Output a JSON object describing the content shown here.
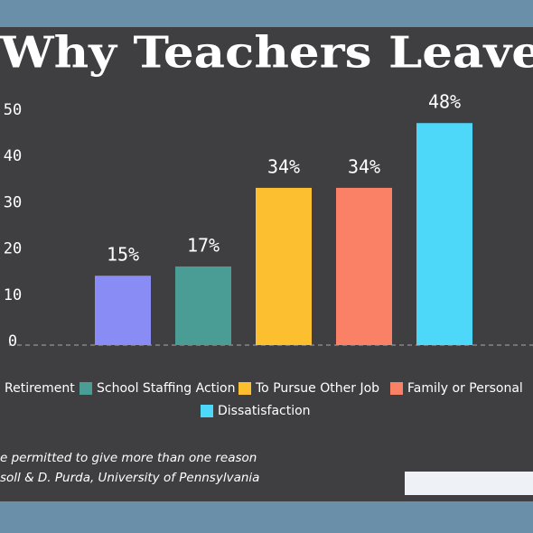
{
  "chart_data": {
    "type": "bar",
    "title": "Why Teachers Leave",
    "categories": [
      "Retirement",
      "School Staffing Action",
      "To Pursue Other Job",
      "Family or Personal",
      "Dissatisfaction"
    ],
    "values": [
      15,
      17,
      34,
      34,
      48
    ],
    "value_labels": [
      "15%",
      "17%",
      "34%",
      "34%",
      "48%"
    ],
    "colors": [
      "#8a8cf5",
      "#4a9d94",
      "#fbbf2f",
      "#fa8066",
      "#4dd8fa"
    ],
    "ylim": [
      0,
      50
    ],
    "yticks": [
      0,
      10,
      20,
      30,
      40,
      50
    ],
    "notes": [
      "e permitted to give more than one reason",
      "soll & D. Purda, University of Pennsylvania"
    ]
  }
}
